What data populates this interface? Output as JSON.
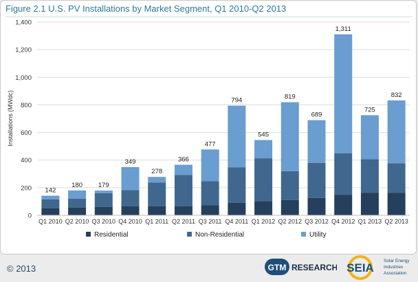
{
  "figure_title": "Figure 2.1  U.S. PV Installations by Market Segment, Q1 2010-Q2 2013",
  "footer": {
    "copyright": "© 2013",
    "gtm_badge": "GTM",
    "gtm_word": "RESEARCH",
    "seia_name": "SEIA",
    "seia_tagline": [
      "Solar Energy",
      "Industries",
      "Association"
    ]
  },
  "colors": {
    "residential": "#263f5c",
    "non_residential": "#40688f",
    "utility": "#6a9dd0",
    "grid": "#dcdcdc",
    "title": "#2a7a96"
  },
  "chart_data": {
    "type": "bar",
    "stacked": true,
    "title": "Figure 2.1  U.S. PV Installations by Market Segment, Q1 2010-Q2 2013",
    "ylabel": "Installations (MWdc)",
    "xlabel": "",
    "ylim": [
      0,
      1400
    ],
    "yticks": [
      0,
      200,
      400,
      600,
      800,
      1000,
      1200,
      1400
    ],
    "ytick_labels": [
      "0",
      "200",
      "400",
      "600",
      "800",
      "1,000",
      "1,200",
      "1,400"
    ],
    "grid": true,
    "legend_position": "bottom",
    "categories": [
      "Q1 2010",
      "Q2 2010",
      "Q3 2010",
      "Q4 2010",
      "Q1 2011",
      "Q2 2011",
      "Q3 2011",
      "Q4 2011",
      "Q1 2012",
      "Q2 2012",
      "Q3 2012",
      "Q4 2012",
      "Q1 2013",
      "Q2 2013"
    ],
    "series": [
      {
        "name": "Residential",
        "values": [
          50,
          55,
          60,
          65,
          65,
          65,
          72,
          90,
          103,
          110,
          125,
          147,
          162,
          162
        ]
      },
      {
        "name": "Non-Residential",
        "values": [
          65,
          65,
          100,
          118,
          172,
          228,
          175,
          258,
          310,
          210,
          255,
          303,
          245,
          215
        ]
      },
      {
        "name": "Utility",
        "values": [
          27,
          60,
          19,
          166,
          41,
          73,
          230,
          446,
          132,
          499,
          309,
          861,
          318,
          455
        ]
      }
    ],
    "totals": [
      142,
      180,
      179,
      349,
      278,
      366,
      477,
      794,
      545,
      819,
      689,
      1311,
      725,
      832
    ],
    "total_labels": [
      "142",
      "180",
      "179",
      "349",
      "278",
      "366",
      "477",
      "794",
      "545",
      "819",
      "689",
      "1,311",
      "725",
      "832"
    ]
  }
}
